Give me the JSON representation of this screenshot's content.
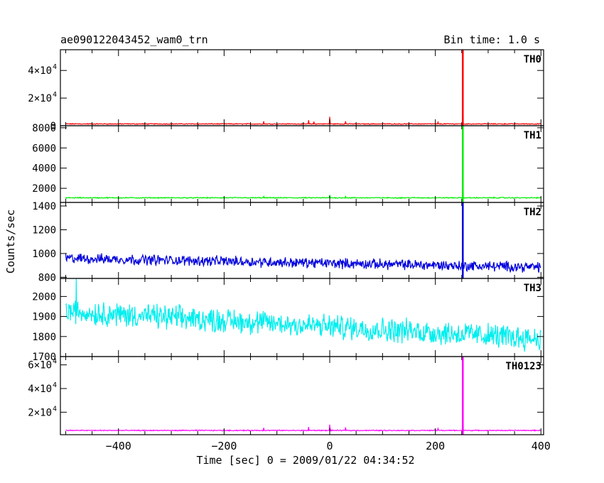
{
  "chart_data": {
    "type": "line",
    "title": "ae090122043452_wam0_trn",
    "subtitle": "Bin time: 1.0 s",
    "xlabel": "Time [sec] 0 = 2009/01/22 04:34:52",
    "ylabel": "Counts/sec",
    "xlim": [
      -510,
      405
    ],
    "x_ticks": [
      -400,
      -200,
      0,
      200,
      400
    ],
    "x_tick_labels": [
      "−400",
      "−200",
      "0",
      "200",
      "400"
    ],
    "panels": [
      {
        "name": "TH0",
        "color": "#ff0000",
        "ylim": [
          0,
          55000
        ],
        "y_ticks": [
          {
            "value": 0,
            "label": "0"
          },
          {
            "value": 20000,
            "label": "2×10",
            "exp": "4"
          },
          {
            "value": 40000,
            "label": "4×10",
            "exp": "4"
          }
        ],
        "baseline": 1300,
        "noise": 250,
        "trend": 0,
        "peak": {
          "x": 252,
          "value": 55000
        },
        "spikes": [
          [
            -125,
            3200
          ],
          [
            -40,
            4000
          ],
          [
            -30,
            3000
          ],
          [
            0,
            6500
          ],
          [
            30,
            3200
          ],
          [
            205,
            2600
          ]
        ]
      },
      {
        "name": "TH1",
        "color": "#00ee00",
        "ylim": [
          600,
          8200
        ],
        "y_ticks": [
          {
            "value": 2000,
            "label": "2000"
          },
          {
            "value": 4000,
            "label": "4000"
          },
          {
            "value": 6000,
            "label": "6000"
          },
          {
            "value": 8000,
            "label": "8000"
          }
        ],
        "baseline": 1060,
        "noise": 40,
        "trend": 0,
        "peak": {
          "x": 252,
          "value": 8200
        },
        "spikes": [
          [
            0,
            1350
          ],
          [
            30,
            1250
          ],
          [
            -125,
            1200
          ]
        ]
      },
      {
        "name": "TH2",
        "color": "#0000dd",
        "ylim": [
          790,
          1430
        ],
        "y_ticks": [
          {
            "value": 800,
            "label": "800"
          },
          {
            "value": 1000,
            "label": "1000"
          },
          {
            "value": 1200,
            "label": "1200"
          },
          {
            "value": 1400,
            "label": "1400"
          }
        ],
        "baseline": 960,
        "noise": 34,
        "trend": -75,
        "peak": {
          "x": 252,
          "value": 1430
        },
        "spikes": []
      },
      {
        "name": "TH3",
        "color": "#00eeee",
        "ylim": [
          1700,
          2090
        ],
        "y_ticks": [
          {
            "value": 1700,
            "label": "1700"
          },
          {
            "value": 1800,
            "label": "1800"
          },
          {
            "value": 1900,
            "label": "1900"
          },
          {
            "value": 2000,
            "label": "2000"
          }
        ],
        "baseline": 1925,
        "noise": 48,
        "trend": -135,
        "peak": null,
        "spikes": [
          [
            -480,
            2090
          ]
        ]
      },
      {
        "name": "TH0123",
        "color": "#ff00ff",
        "ylim": [
          1000,
          67000
        ],
        "y_ticks": [
          {
            "value": 20000,
            "label": "2×10",
            "exp": "4"
          },
          {
            "value": 40000,
            "label": "4×10",
            "exp": "4"
          },
          {
            "value": 60000,
            "label": "6×10",
            "exp": "4"
          }
        ],
        "baseline": 4600,
        "noise": 300,
        "trend": 0,
        "peak": {
          "x": 252,
          "value": 67000
        },
        "spikes": [
          [
            0,
            9500
          ],
          [
            30,
            7200
          ],
          [
            -125,
            6800
          ],
          [
            -40,
            7500
          ],
          [
            205,
            6300
          ]
        ]
      }
    ]
  }
}
